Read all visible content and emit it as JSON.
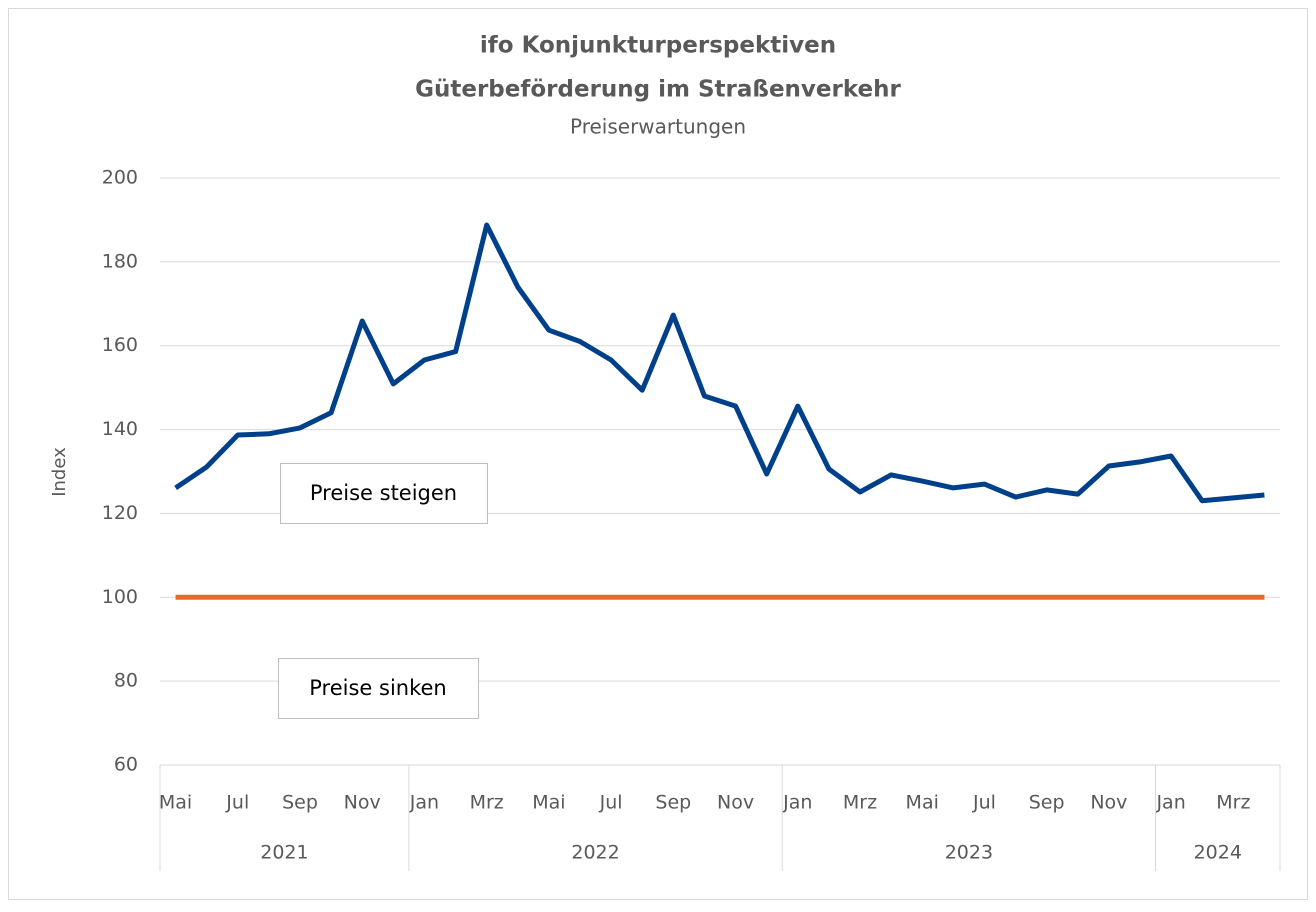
{
  "chart_data": {
    "type": "line",
    "title": [
      "ifo Konjunkturperspektiven",
      "Güterbeförderung im Straßenverkehr"
    ],
    "subtitle": "Preiserwartungen",
    "y_label": "Index",
    "categories": [
      "Mai",
      null,
      "Jul",
      null,
      "Sep",
      null,
      "Nov",
      null,
      "Jan",
      null,
      "Mrz",
      null,
      "Mai",
      null,
      "Jul",
      null,
      "Sep",
      null,
      "Nov",
      null,
      "Jan",
      null,
      "Mrz",
      null,
      "Mai",
      null,
      "Jul",
      null,
      "Sep",
      null,
      "Nov",
      null,
      "Jan",
      null,
      "Mrz",
      null
    ],
    "years": [
      "2021",
      "2022",
      "2023",
      "2024"
    ],
    "series": [
      {
        "color": "#003f8a",
        "values": [
          126.1,
          131.1,
          138.7,
          139,
          140.4,
          144,
          165.9,
          150.9,
          156.6,
          158.6,
          188.8,
          174,
          163.7,
          161,
          156.6,
          149.4,
          167.3,
          148,
          145.6,
          129.4,
          145.6,
          130.6,
          125.1,
          129.2,
          127.7,
          126.1,
          127,
          123.9,
          125.6,
          124.6,
          131.3,
          132.3,
          133.7,
          123,
          123.7,
          124.4
        ]
      }
    ],
    "reference_line": {
      "value": 100,
      "color": "#e46c2a"
    },
    "annotations": [
      "Preise steigen",
      "Preise sinken"
    ],
    "ylim": [
      60,
      200
    ],
    "yticks": [
      60,
      80,
      100,
      120,
      140,
      160,
      180,
      200
    ],
    "grid": true
  }
}
